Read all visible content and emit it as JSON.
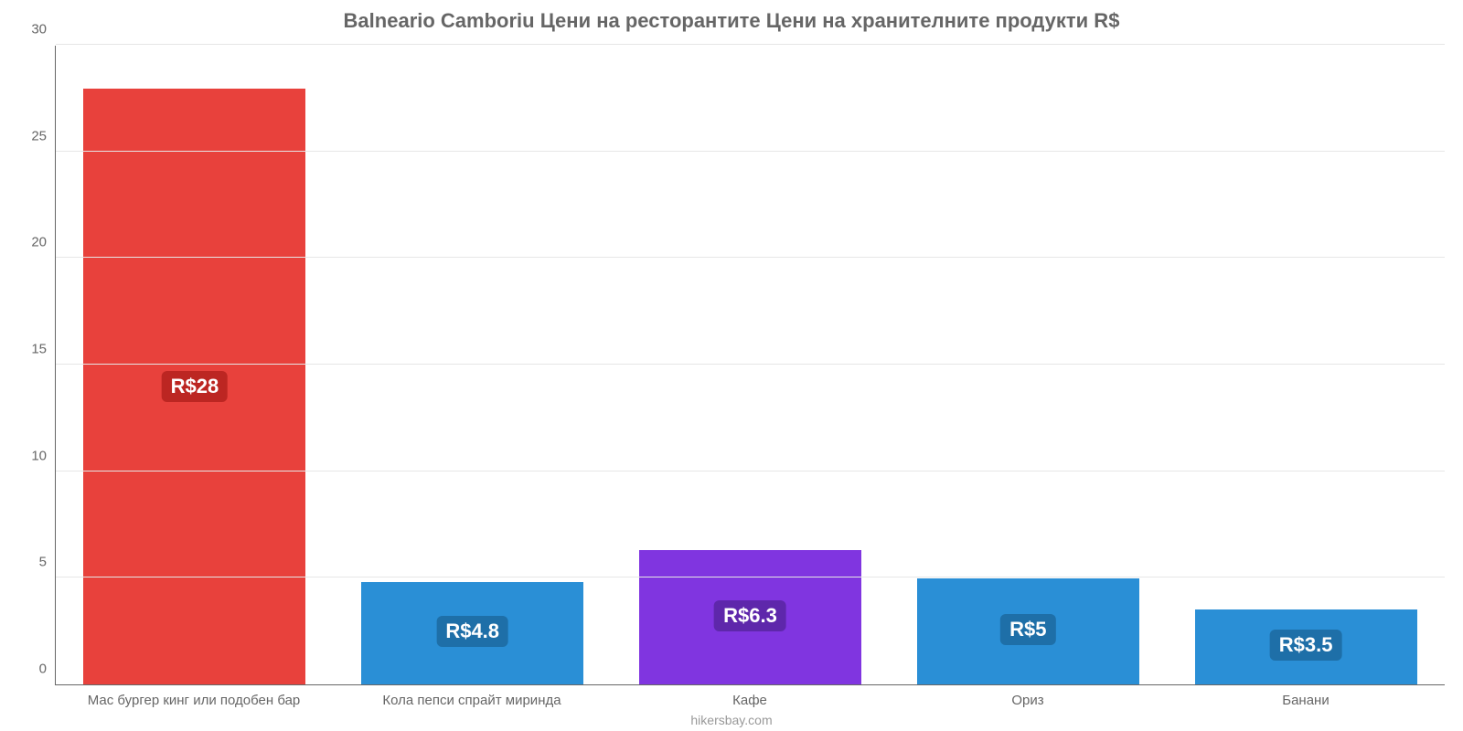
{
  "chart": {
    "type": "bar",
    "title": "Balneario Camboriu Цени на ресторантите Цени на хранителните продукти R$",
    "title_fontsize": 22,
    "title_color": "#666666",
    "background_color": "#ffffff",
    "grid_color": "#e6e6e6",
    "axis_line_color": "#666666",
    "tick_label_color": "#666666",
    "tick_fontsize": 15,
    "ylim": [
      0,
      30
    ],
    "ytick_step": 5,
    "yticks": [
      "0",
      "5",
      "10",
      "15",
      "20",
      "25",
      "30"
    ],
    "bar_width_pct": 80,
    "value_label_fontsize": 22,
    "value_label_color": "#ffffff",
    "value_label_radius": 6,
    "categories": [
      "Мас бургер кинг или подобен бар",
      "Кола пепси спрайт миринда",
      "Кафе",
      "Ориз",
      "Банани"
    ],
    "values": [
      28,
      4.8,
      6.3,
      5,
      3.5
    ],
    "display_values": [
      "R$28",
      "R$4.8",
      "R$6.3",
      "R$5",
      "R$3.5"
    ],
    "bar_colors": [
      "#e8413c",
      "#2a8fd6",
      "#8035e0",
      "#2a8fd6",
      "#2a8fd6"
    ],
    "label_bg_colors": [
      "#bc2622",
      "#1e6fa8",
      "#5e27ab",
      "#1e6fa8",
      "#1e6fa8"
    ],
    "footer": "hikersbay.com",
    "footer_color": "#999999",
    "footer_fontsize": 14
  }
}
